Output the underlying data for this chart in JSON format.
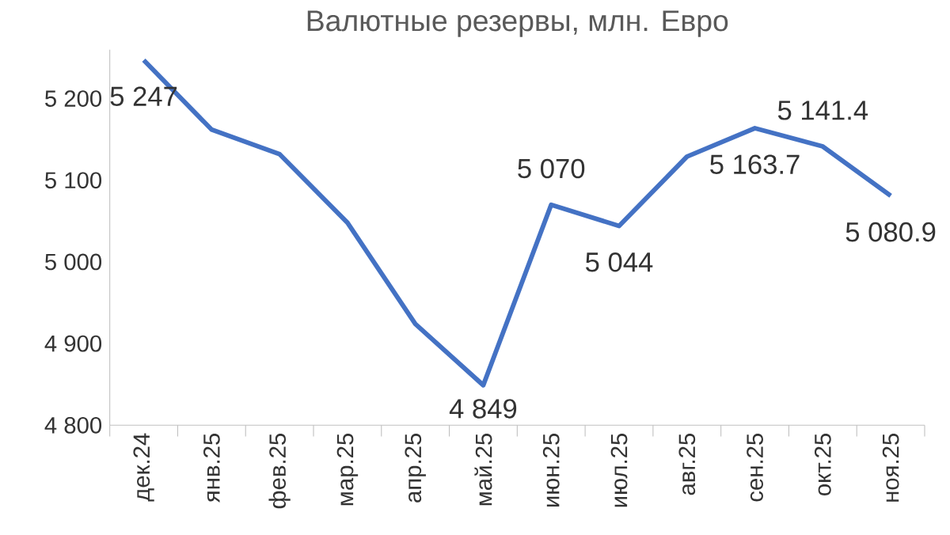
{
  "chart_data": {
    "type": "line",
    "title": "Валютные резервы, млн. Евро",
    "categories": [
      "дек.24",
      "янв.25",
      "фев.25",
      "мар.25",
      "апр.25",
      "май.25",
      "июн.25",
      "июл.25",
      "авг.25",
      "сен.25",
      "окт.25",
      "ноя.25"
    ],
    "series": [
      {
        "color": "#4472c4",
        "values": [
          5247,
          5162,
          5132,
          5048,
          4924,
          4849,
          5070,
          5044,
          5129,
          5163.7,
          5141.4,
          5080.9
        ],
        "value_labels": [
          "5 247",
          null,
          null,
          null,
          null,
          "4 849",
          "5 070",
          "5 044",
          null,
          "5 163.7",
          "5 141.4",
          "5 080.9"
        ]
      }
    ],
    "ylim": [
      4800,
      5260
    ],
    "yticks": [
      {
        "value": 4800,
        "label": "4 800"
      },
      {
        "value": 4900,
        "label": "4 900"
      },
      {
        "value": 5000,
        "label": "5 000"
      },
      {
        "value": 5100,
        "label": "5 100"
      },
      {
        "value": 5200,
        "label": "5 200"
      }
    ],
    "grid": false,
    "marker": "none",
    "line_style": "solid"
  }
}
